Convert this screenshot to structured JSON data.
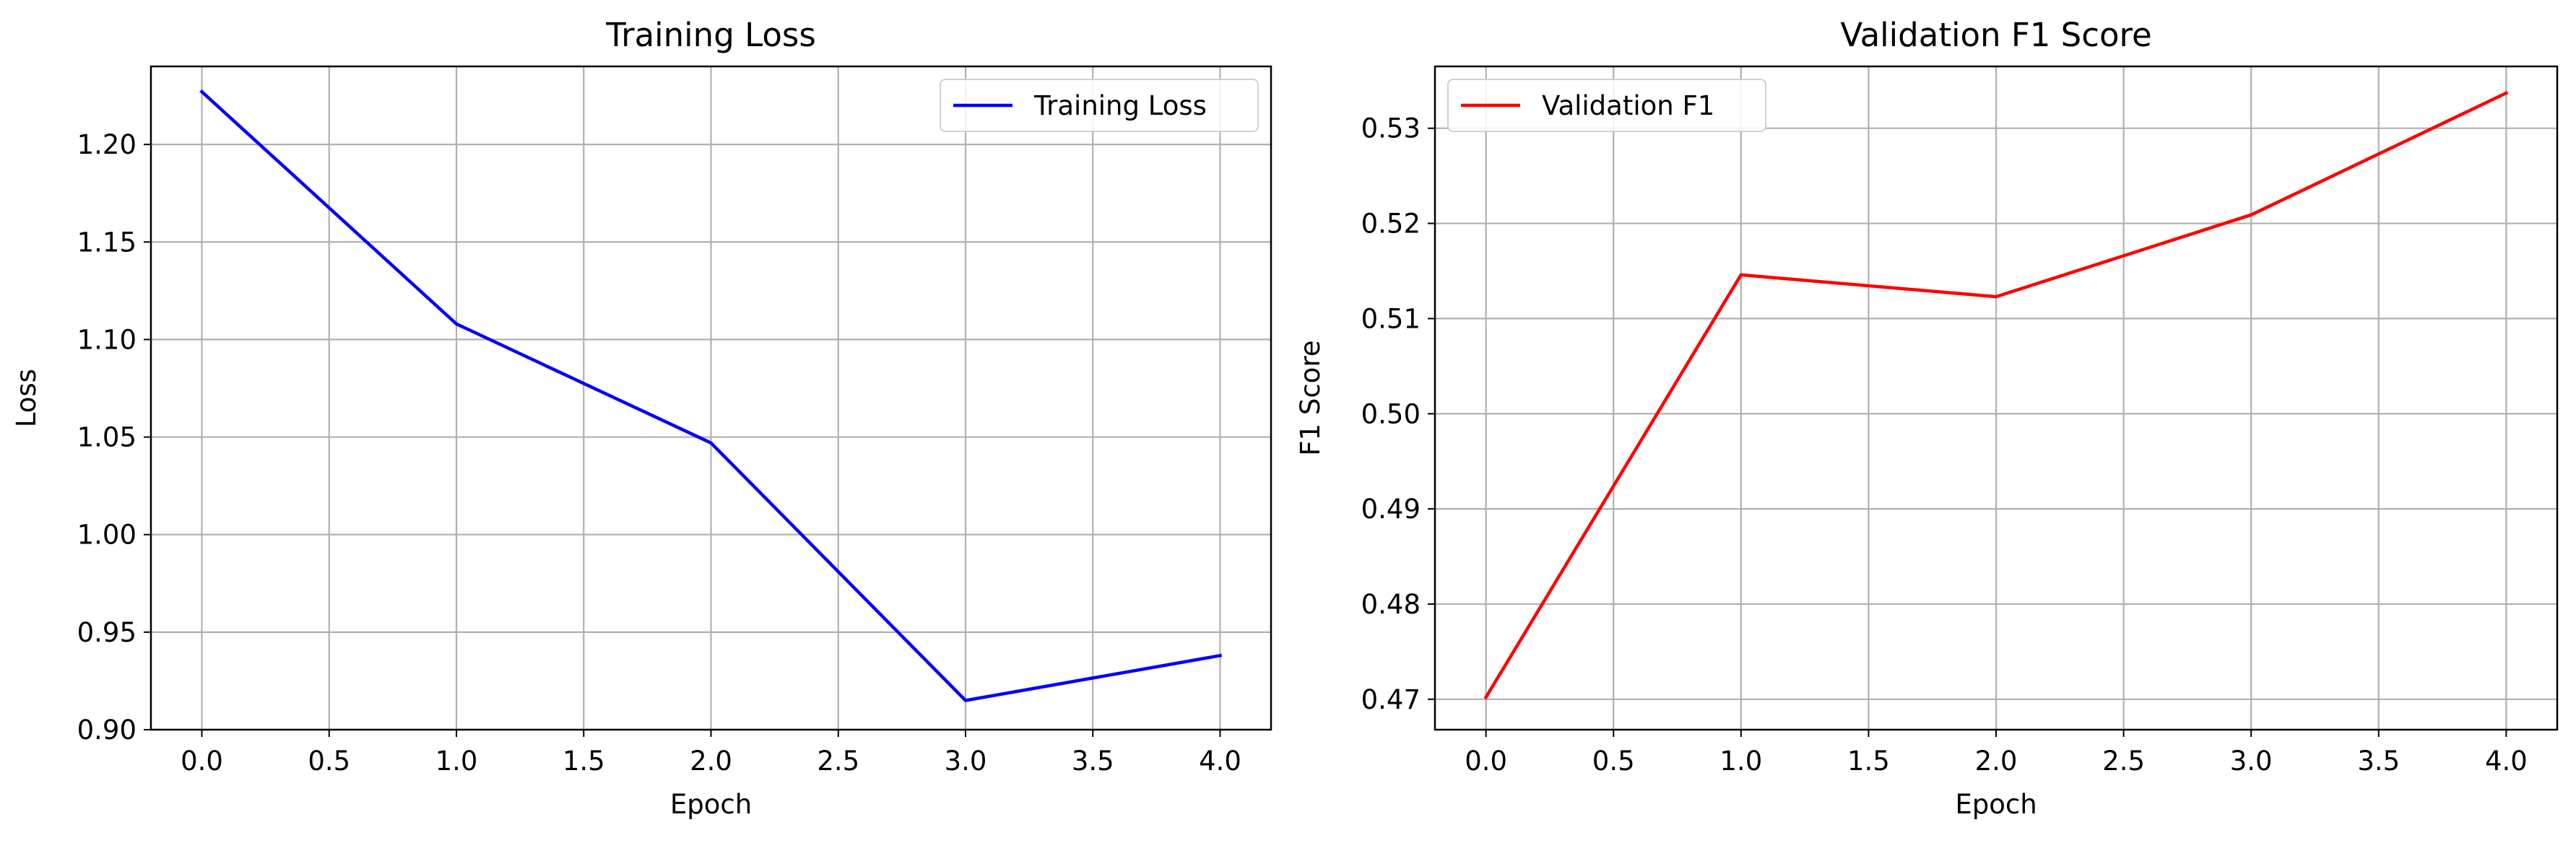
{
  "chart_data": [
    {
      "type": "line",
      "title": "Training Loss",
      "xlabel": "Epoch",
      "ylabel": "Loss",
      "x": [
        0,
        1,
        2,
        3,
        4
      ],
      "xlim": [
        -0.2,
        4.2
      ],
      "ylim": [
        0.9,
        1.24
      ],
      "xticks": [
        0.0,
        0.5,
        1.0,
        1.5,
        2.0,
        2.5,
        3.0,
        3.5,
        4.0
      ],
      "xtick_labels": [
        "0.0",
        "0.5",
        "1.0",
        "1.5",
        "2.0",
        "2.5",
        "3.0",
        "3.5",
        "4.0"
      ],
      "yticks": [
        0.9,
        0.95,
        1.0,
        1.05,
        1.1,
        1.15,
        1.2
      ],
      "ytick_labels": [
        "0.90",
        "0.95",
        "1.00",
        "1.05",
        "1.10",
        "1.15",
        "1.20"
      ],
      "grid": true,
      "legend": "upper right",
      "series": [
        {
          "name": "Training Loss",
          "color": "#0000ff",
          "values": [
            1.227,
            1.108,
            1.047,
            0.915,
            0.938
          ]
        }
      ]
    },
    {
      "type": "line",
      "title": "Validation F1 Score",
      "xlabel": "Epoch",
      "ylabel": "F1 Score",
      "x": [
        0,
        1,
        2,
        3,
        4
      ],
      "xlim": [
        -0.2,
        4.2
      ],
      "ylim": [
        0.4668,
        0.5365
      ],
      "xticks": [
        0.0,
        0.5,
        1.0,
        1.5,
        2.0,
        2.5,
        3.0,
        3.5,
        4.0
      ],
      "xtick_labels": [
        "0.0",
        "0.5",
        "1.0",
        "1.5",
        "2.0",
        "2.5",
        "3.0",
        "3.5",
        "4.0"
      ],
      "yticks": [
        0.47,
        0.48,
        0.49,
        0.5,
        0.51,
        0.52,
        0.53
      ],
      "ytick_labels": [
        "0.47",
        "0.48",
        "0.49",
        "0.50",
        "0.51",
        "0.52",
        "0.53"
      ],
      "grid": true,
      "legend": "upper left",
      "series": [
        {
          "name": "Validation F1",
          "color": "#ff0000",
          "values": [
            0.4702,
            0.5146,
            0.5123,
            0.5209,
            0.5337
          ]
        }
      ]
    }
  ]
}
